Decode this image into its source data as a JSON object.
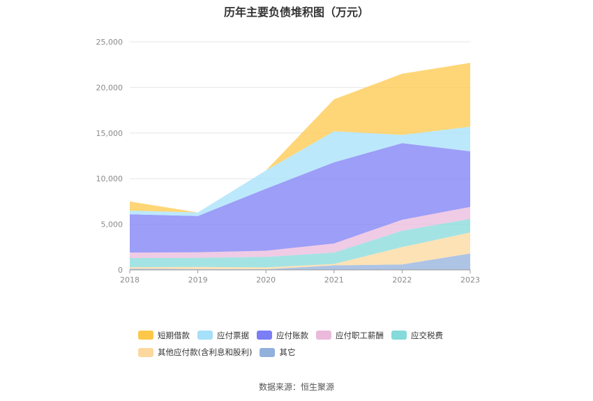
{
  "chart_data": {
    "type": "area",
    "title": "历年主要负债堆积图（万元）",
    "x": [
      "2018",
      "2019",
      "2020",
      "2021",
      "2022",
      "2023"
    ],
    "ylim": [
      0,
      25000
    ],
    "yticks": [
      "0",
      "5,000",
      "10,000",
      "15,000",
      "20,000",
      "25,000"
    ],
    "stacked": true,
    "grid": true,
    "legend_position": "bottom",
    "series": [
      {
        "name": "其它",
        "color": "#92b0dc",
        "values": [
          130,
          100,
          80,
          500,
          600,
          1800
        ]
      },
      {
        "name": "其他应付款(含利息和股利)",
        "color": "#fcd89e",
        "values": [
          170,
          230,
          190,
          150,
          1900,
          2300
        ]
      },
      {
        "name": "应交税费",
        "color": "#85dada",
        "values": [
          1000,
          1000,
          1150,
          1250,
          1800,
          1500
        ]
      },
      {
        "name": "应付职工薪酬",
        "color": "#ebb9dc",
        "values": [
          600,
          600,
          680,
          1000,
          1200,
          1300
        ]
      },
      {
        "name": "应付账款",
        "color": "#7b7ef5",
        "values": [
          4200,
          3970,
          6800,
          8900,
          8400,
          6100
        ]
      },
      {
        "name": "应付票据",
        "color": "#a6e0f9",
        "values": [
          400,
          400,
          2000,
          3400,
          900,
          2700
        ]
      },
      {
        "name": "短期借款",
        "color": "#fdc84a",
        "values": [
          1000,
          0,
          0,
          3500,
          6700,
          7000
        ]
      }
    ],
    "legend_order": [
      "短期借款",
      "应付票据",
      "应付账款",
      "应付职工薪酬",
      "应交税费",
      "其他应付款(含利息和股利)",
      "其它"
    ]
  },
  "source": "数据来源：恒生聚源"
}
